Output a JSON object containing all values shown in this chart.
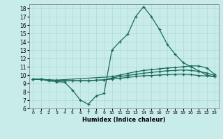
{
  "xlabel": "Humidex (Indice chaleur)",
  "xlim": [
    -0.5,
    23.5
  ],
  "ylim": [
    6,
    18.5
  ],
  "yticks": [
    6,
    7,
    8,
    9,
    10,
    11,
    12,
    13,
    14,
    15,
    16,
    17,
    18
  ],
  "xticks": [
    0,
    1,
    2,
    3,
    4,
    5,
    6,
    7,
    8,
    9,
    10,
    11,
    12,
    13,
    14,
    15,
    16,
    17,
    18,
    19,
    20,
    21,
    22,
    23
  ],
  "bg_color": "#c8ecea",
  "line_color": "#1a6b5a",
  "grid_color": "#b0d8d4",
  "line1_x": [
    0,
    1,
    2,
    3,
    4,
    5,
    6,
    7,
    8,
    9,
    10,
    11,
    12,
    13,
    14,
    15,
    16,
    17,
    18,
    19,
    20,
    21,
    22,
    23
  ],
  "line1_y": [
    9.5,
    9.5,
    9.3,
    9.2,
    9.15,
    8.2,
    7.0,
    6.5,
    7.5,
    7.8,
    13.0,
    14.0,
    14.9,
    17.0,
    18.2,
    17.0,
    15.5,
    13.7,
    12.5,
    11.5,
    11.0,
    10.5,
    10.0,
    9.8
  ],
  "line2_x": [
    0,
    1,
    2,
    3,
    10,
    11,
    12,
    13,
    14,
    15,
    16,
    17,
    18,
    19,
    20,
    21,
    22,
    23
  ],
  "line2_y": [
    9.5,
    9.5,
    9.4,
    9.4,
    9.8,
    10.0,
    10.2,
    10.4,
    10.55,
    10.65,
    10.75,
    10.85,
    10.9,
    11.0,
    11.1,
    11.1,
    10.85,
    10.1
  ],
  "line3_x": [
    0,
    1,
    2,
    3,
    4,
    5,
    6,
    7,
    8,
    9,
    10,
    11,
    12,
    13,
    14,
    15,
    16,
    17,
    18,
    19,
    20,
    21,
    22,
    23
  ],
  "line3_y": [
    9.5,
    9.5,
    9.42,
    9.35,
    9.32,
    9.32,
    9.32,
    9.32,
    9.38,
    9.42,
    9.65,
    9.82,
    9.95,
    10.1,
    10.22,
    10.32,
    10.42,
    10.52,
    10.55,
    10.62,
    10.55,
    10.45,
    10.25,
    9.95
  ],
  "line4_x": [
    0,
    1,
    2,
    3,
    4,
    5,
    6,
    7,
    8,
    9,
    10,
    11,
    12,
    13,
    14,
    15,
    16,
    17,
    18,
    19,
    20,
    21,
    22,
    23
  ],
  "line4_y": [
    9.5,
    9.5,
    9.42,
    9.35,
    9.32,
    9.32,
    9.32,
    9.32,
    9.38,
    9.42,
    9.52,
    9.62,
    9.72,
    9.82,
    9.92,
    9.95,
    10.02,
    10.05,
    10.1,
    10.12,
    10.05,
    9.95,
    9.88,
    9.82
  ]
}
